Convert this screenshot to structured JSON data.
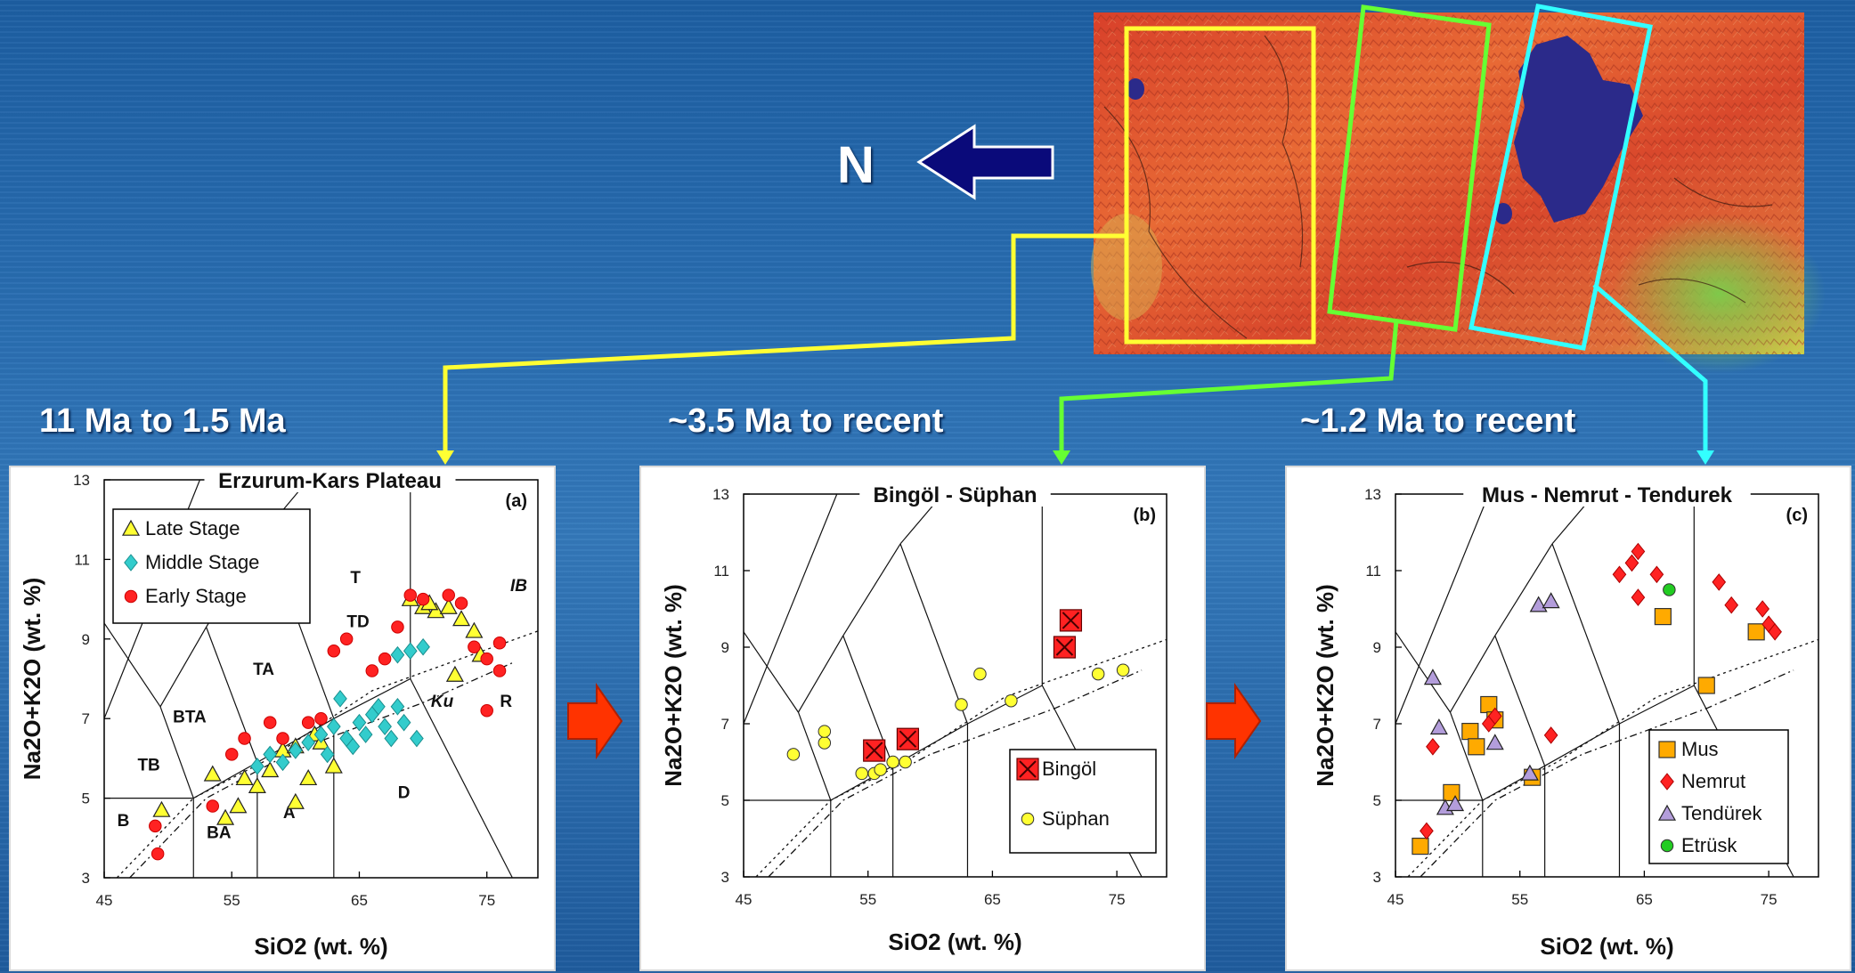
{
  "north_label": "N",
  "panels": [
    {
      "period": "11 Ma to 1.5 Ma",
      "title": "Erzurum-Kars Plateau",
      "letter": "(a)"
    },
    {
      "period": "~3.5 Ma to recent",
      "title": "Bingöl - Süphan",
      "letter": "(b)"
    },
    {
      "period": "~1.2 Ma to recent",
      "title": "Mus - Nemrut - Tendurek",
      "letter": "(c)"
    }
  ],
  "colors": {
    "yellow_box": "#ffff33",
    "green_box": "#66ff33",
    "cyan_box": "#33ffff",
    "arrow_red": "#ff3300",
    "north_arrow": "#0a0a7a"
  },
  "chart_data": [
    {
      "type": "scatter",
      "title": "Erzurum-Kars Plateau",
      "xlabel": "SiO2 (wt. %)",
      "ylabel": "Na2O+K2O (wt. %)",
      "xlim": [
        45,
        79
      ],
      "ylim": [
        3,
        13
      ],
      "xticks": [
        45,
        55,
        65,
        75
      ],
      "yticks": [
        3,
        5,
        7,
        9,
        11,
        13
      ],
      "legend_position": "top-left",
      "field_labels": [
        "T",
        "TD",
        "TA",
        "BTA",
        "TB",
        "B",
        "BA",
        "A",
        "D",
        "R",
        "IB",
        "Ku"
      ],
      "series": [
        {
          "name": "Late Stage",
          "marker": "triangle",
          "color": "#ffff33",
          "points": [
            [
              49.5,
              4.7
            ],
            [
              53.5,
              5.6
            ],
            [
              54.5,
              4.5
            ],
            [
              55.5,
              4.8
            ],
            [
              56,
              5.5
            ],
            [
              57,
              5.3
            ],
            [
              58,
              5.7
            ],
            [
              59,
              6.2
            ],
            [
              60,
              6.3
            ],
            [
              61,
              5.5
            ],
            [
              61.5,
              6.6
            ],
            [
              62,
              6.4
            ],
            [
              63,
              5.8
            ],
            [
              60,
              4.9
            ],
            [
              69,
              10
            ],
            [
              70,
              9.8
            ],
            [
              71,
              9.7
            ],
            [
              72,
              9.8
            ],
            [
              73,
              9.5
            ],
            [
              74,
              9.2
            ],
            [
              72.5,
              8.1
            ],
            [
              74.5,
              8.6
            ],
            [
              70.5,
              9.9
            ]
          ]
        },
        {
          "name": "Middle Stage",
          "marker": "diamond",
          "color": "#33cccc",
          "points": [
            [
              57,
              5.8
            ],
            [
              58,
              6.1
            ],
            [
              59,
              5.9
            ],
            [
              60,
              6.2
            ],
            [
              61,
              6.4
            ],
            [
              62,
              6.6
            ],
            [
              63,
              6.8
            ],
            [
              64,
              6.5
            ],
            [
              65,
              6.9
            ],
            [
              66,
              7.1
            ],
            [
              67,
              6.8
            ],
            [
              68,
              7.3
            ],
            [
              63.5,
              7.5
            ],
            [
              64.5,
              6.3
            ],
            [
              65.5,
              6.6
            ],
            [
              66.5,
              7.3
            ],
            [
              67.5,
              6.5
            ],
            [
              68.5,
              6.9
            ],
            [
              62.5,
              6.1
            ],
            [
              69,
              8.7
            ],
            [
              70,
              8.8
            ],
            [
              68,
              8.6
            ],
            [
              69.5,
              6.5
            ]
          ]
        },
        {
          "name": "Early Stage",
          "marker": "circle",
          "color": "#ff2222",
          "points": [
            [
              49,
              4.3
            ],
            [
              49.2,
              3.6
            ],
            [
              53.5,
              4.8
            ],
            [
              55,
              6.1
            ],
            [
              56,
              6.5
            ],
            [
              58,
              6.9
            ],
            [
              59,
              6.5
            ],
            [
              61,
              6.9
            ],
            [
              62,
              7.0
            ],
            [
              63,
              8.7
            ],
            [
              64,
              9.0
            ],
            [
              66,
              8.2
            ],
            [
              67,
              8.5
            ],
            [
              68,
              9.3
            ],
            [
              69,
              10.1
            ],
            [
              70,
              10.0
            ],
            [
              72,
              10.1
            ],
            [
              73,
              9.9
            ],
            [
              74,
              8.8
            ],
            [
              75,
              8.5
            ],
            [
              76,
              8.2
            ],
            [
              75,
              7.2
            ],
            [
              76,
              8.9
            ]
          ]
        }
      ]
    },
    {
      "type": "scatter",
      "title": "Bingöl - Süphan",
      "xlabel": "SiO2 (wt. %)",
      "ylabel": "Na2O+K2O (wt. %)",
      "xlim": [
        45,
        79
      ],
      "ylim": [
        3,
        13
      ],
      "xticks": [
        45,
        55,
        65,
        75
      ],
      "yticks": [
        3,
        5,
        7,
        9,
        11,
        13
      ],
      "legend_position": "bottom-right",
      "series": [
        {
          "name": "Bingöl",
          "marker": "square-x",
          "color": "#ff2222",
          "points": [
            [
              55.5,
              6.3
            ],
            [
              58.2,
              6.6
            ],
            [
              70.8,
              9.0
            ],
            [
              71.3,
              9.7
            ]
          ]
        },
        {
          "name": "Süphan",
          "marker": "circle",
          "color": "#ffff33",
          "points": [
            [
              49,
              6.2
            ],
            [
              51.5,
              6.5
            ],
            [
              51.5,
              6.8
            ],
            [
              54.5,
              5.7
            ],
            [
              55.5,
              5.7
            ],
            [
              56,
              5.8
            ],
            [
              57,
              6.0
            ],
            [
              58,
              6.0
            ],
            [
              62.5,
              7.5
            ],
            [
              64,
              8.3
            ],
            [
              66.5,
              7.6
            ],
            [
              73.5,
              8.3
            ],
            [
              75.5,
              8.4
            ]
          ]
        }
      ]
    },
    {
      "type": "scatter",
      "title": "Mus - Nemrut - Tendurek",
      "xlabel": "SiO2 (wt. %)",
      "ylabel": "Na2O+K2O (wt. %)",
      "xlim": [
        45,
        79
      ],
      "ylim": [
        3,
        13
      ],
      "xticks": [
        45,
        55,
        65,
        75
      ],
      "yticks": [
        3,
        5,
        7,
        9,
        11,
        13
      ],
      "legend_position": "bottom-right",
      "series": [
        {
          "name": "Mus",
          "marker": "square",
          "color": "#ffaa00",
          "points": [
            [
              47,
              3.8
            ],
            [
              49.5,
              5.2
            ],
            [
              51,
              6.8
            ],
            [
              51.5,
              6.4
            ],
            [
              52.5,
              7.5
            ],
            [
              53,
              7.1
            ],
            [
              56,
              5.6
            ],
            [
              66.5,
              9.8
            ],
            [
              70,
              8.0
            ],
            [
              74,
              9.4
            ]
          ]
        },
        {
          "name": "Nemrut",
          "marker": "diamond",
          "color": "#ff2222",
          "points": [
            [
              47.5,
              4.2
            ],
            [
              48,
              6.4
            ],
            [
              52.5,
              7.0
            ],
            [
              53,
              7.2
            ],
            [
              57.5,
              6.7
            ],
            [
              63,
              10.9
            ],
            [
              64,
              11.2
            ],
            [
              64.5,
              11.5
            ],
            [
              64.5,
              10.3
            ],
            [
              66,
              10.9
            ],
            [
              71,
              10.7
            ],
            [
              72,
              10.1
            ],
            [
              74.5,
              10.0
            ],
            [
              75,
              9.6
            ],
            [
              75.5,
              9.4
            ]
          ]
        },
        {
          "name": "Tendürek",
          "marker": "triangle",
          "color": "#b39ddb",
          "points": [
            [
              48,
              8.2
            ],
            [
              48.5,
              6.9
            ],
            [
              49,
              4.8
            ],
            [
              49.8,
              4.9
            ],
            [
              53,
              6.5
            ],
            [
              55.8,
              5.7
            ],
            [
              56.5,
              10.1
            ],
            [
              57.5,
              10.2
            ]
          ]
        },
        {
          "name": "Etrüsk",
          "marker": "circle",
          "color": "#22cc22",
          "points": [
            [
              67,
              10.5
            ]
          ]
        }
      ]
    }
  ]
}
